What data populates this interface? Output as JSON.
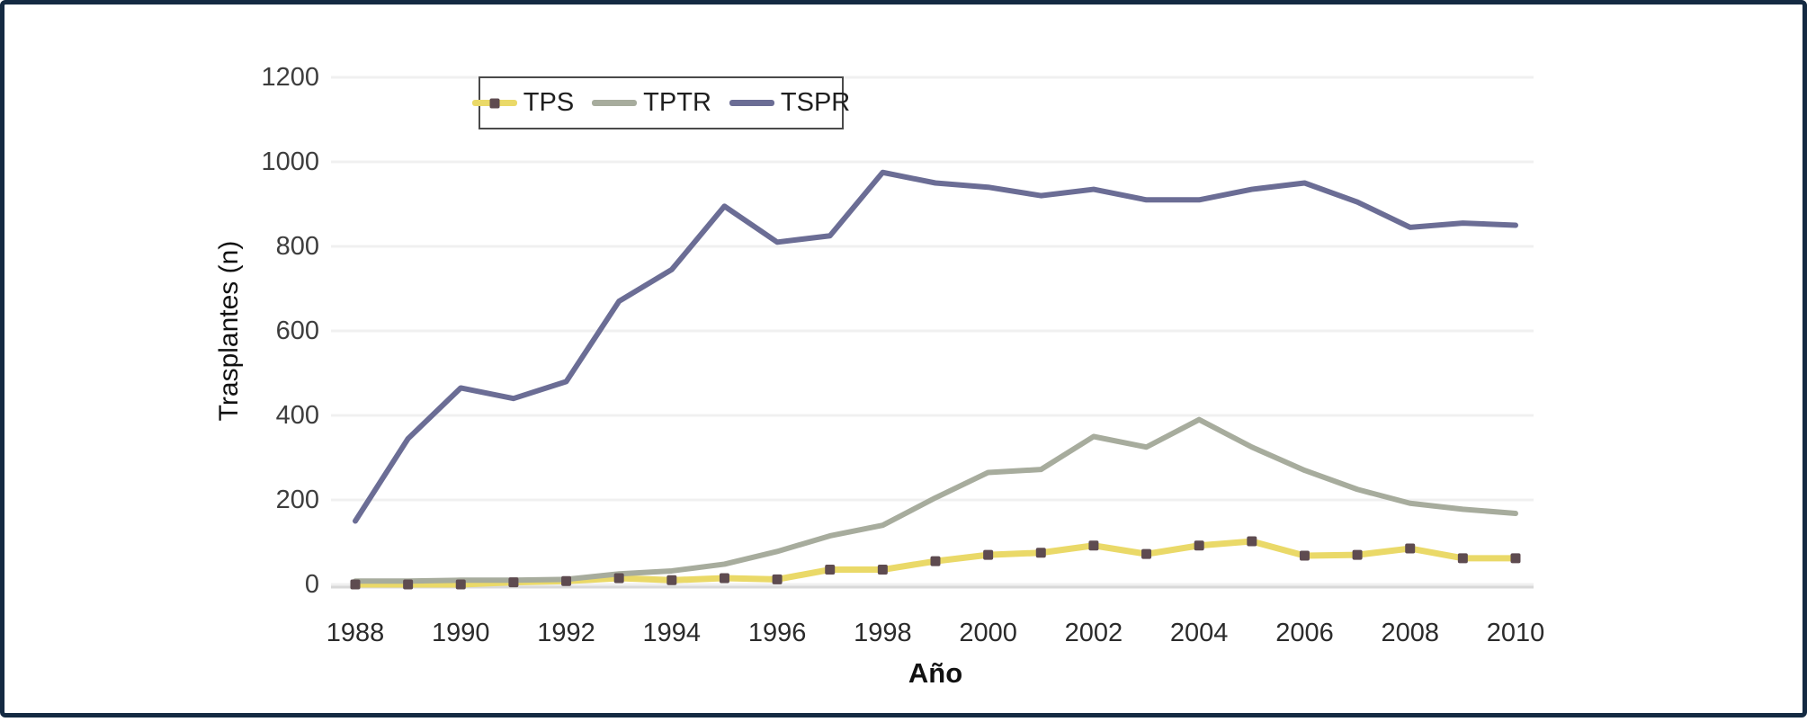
{
  "figure": {
    "background": "#ffffff",
    "frame_border_color": "#142a42",
    "gridline_color": "#f0f0f0",
    "axis_line_color": "#d9d9d9",
    "tick_text_color": "#3d3d3d"
  },
  "legend": {
    "border_color": "#4a4a4a",
    "position": "top-center-inside"
  },
  "chart_data": {
    "type": "line",
    "title": "",
    "xlabel": "Año",
    "ylabel": "Trasplantes (n)",
    "x": [
      1988,
      1989,
      1990,
      1991,
      1992,
      1993,
      1994,
      1995,
      1996,
      1997,
      1998,
      1999,
      2000,
      2001,
      2002,
      2003,
      2004,
      2005,
      2006,
      2007,
      2008,
      2009,
      2010
    ],
    "x_tick_labels": [
      "1988",
      "1990",
      "1992",
      "1994",
      "1996",
      "1998",
      "2000",
      "2002",
      "2004",
      "2006",
      "2008",
      "2010"
    ],
    "y_ticks": [
      0,
      200,
      400,
      600,
      800,
      1000,
      1200
    ],
    "ylim": [
      0,
      1200
    ],
    "xlim": [
      1988,
      2010
    ],
    "grid": "horizontal",
    "legend_position": "top-center-inside",
    "series": [
      {
        "name": "TPS",
        "color": "#ead968",
        "marker": "square",
        "marker_color": "#5e4b50",
        "values": [
          0,
          0,
          0,
          5,
          8,
          15,
          10,
          15,
          12,
          35,
          35,
          55,
          70,
          75,
          92,
          72,
          92,
          102,
          68,
          70,
          85,
          62,
          62
        ]
      },
      {
        "name": "TPTR",
        "color": "#a7ac9d",
        "marker": "none",
        "marker_color": "",
        "values": [
          8,
          8,
          10,
          10,
          12,
          25,
          32,
          48,
          78,
          115,
          140,
          205,
          265,
          272,
          350,
          325,
          390,
          325,
          270,
          225,
          192,
          178,
          168
        ]
      },
      {
        "name": "TSPR",
        "color": "#6b6d95",
        "marker": "none",
        "marker_color": "",
        "values": [
          150,
          345,
          465,
          440,
          480,
          670,
          745,
          895,
          810,
          825,
          975,
          950,
          940,
          920,
          935,
          910,
          910,
          935,
          950,
          905,
          845,
          855,
          850
        ]
      }
    ]
  }
}
